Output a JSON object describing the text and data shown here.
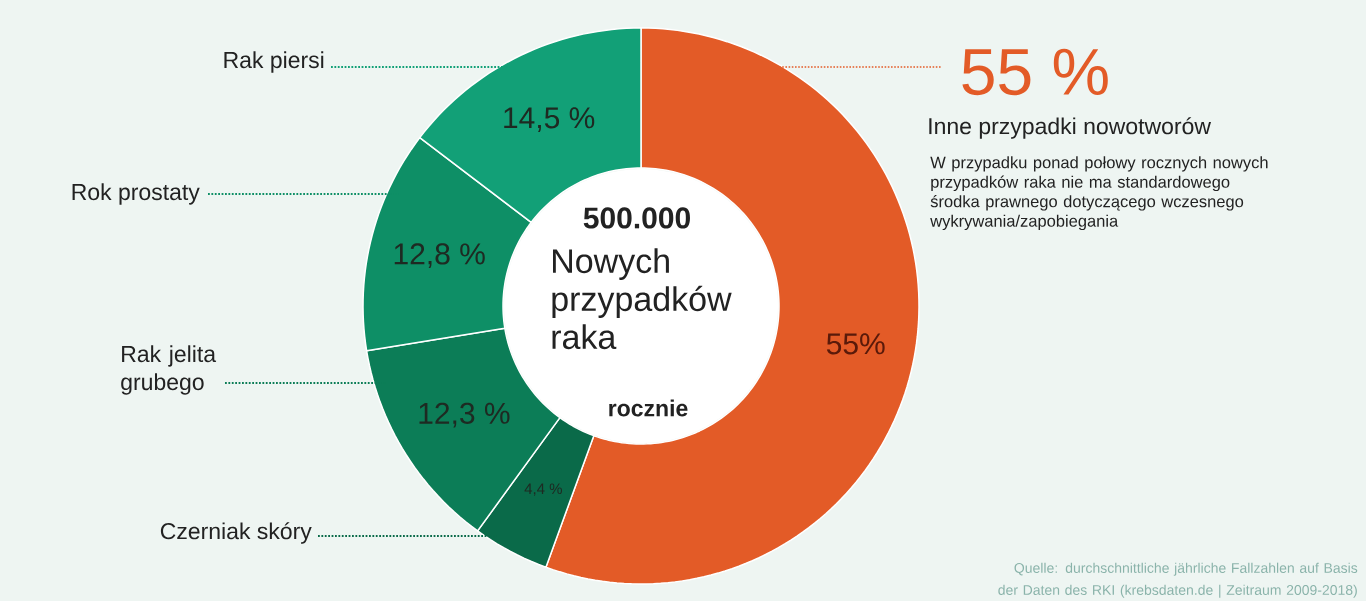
{
  "chart_data": {
    "type": "donut",
    "categories": [
      "Inne przypadki nowotworów",
      "Czerniak skóry",
      "Rak jelita grubego",
      "Rok prostaty",
      "Rak piersi"
    ],
    "values": [
      55,
      4.4,
      12.3,
      12.8,
      14.5
    ],
    "colors": [
      "#e35b27",
      "#0a6a49",
      "#0c7d57",
      "#0e8f66",
      "#12a077"
    ],
    "value_labels": [
      "55%",
      "4,4 %",
      "12,3 %",
      "12,8 %",
      "14,5 %"
    ],
    "annotations": [
      "55 %",
      "W przypadku ponad połowy rocznych nowych przypadków raka nie ma standardowego środka prawnego dotyczącego wczesnego wykrywania/zapobiegania",
      "500.000",
      "Nowych przypadków raka",
      "rocznie",
      "Quelle: durchschnittliche jährliche Fallzahlen auf Basis der Daten des RKI (krebsdaten.de | Zeitraum 2009-2018)"
    ]
  }
}
